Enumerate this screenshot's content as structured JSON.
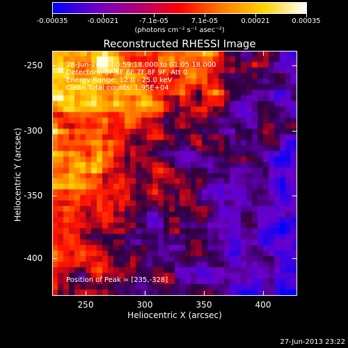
{
  "colorbar": {
    "labels": [
      "-0.00035",
      "-0.00021",
      "-7.1e-05",
      "7.1e-05",
      "0.00021",
      "0.00035"
    ],
    "units": "(photons cm⁻² s⁻¹ asec⁻²)",
    "colors": [
      "#0000ff",
      "#6a00c8",
      "#b0007a",
      "#ff0000",
      "#ff7a00",
      "#ffd400",
      "#ffffff"
    ]
  },
  "title": "Reconstructed RHESSI Image",
  "info": {
    "time": "28-Jun-2013 00:59:18.000 to 01:05:18.000",
    "detectors": "Detectors: 3F 5F 6F 7F 8F 9F, Att 0",
    "energy": "Energy Range: 12.0 - 25.0 keV",
    "clean": "Clean     Total counts: 1.95E+04"
  },
  "peak": "Position of Peak = [235,-328]",
  "axes": {
    "x_title": "Heliocentric X (arcsec)",
    "y_title": "Heliocentric Y (arcsec)",
    "x_ticks": [
      "250",
      "300",
      "350",
      "400"
    ],
    "y_ticks": [
      "-250",
      "-300",
      "-350",
      "-400"
    ]
  },
  "timestamp": "27-Jun-2013 23:22"
}
